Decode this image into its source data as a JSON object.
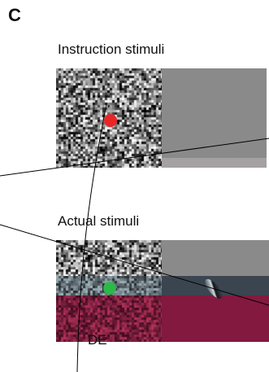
{
  "panel": {
    "letter": "C",
    "instruction_label": "Instruction stimuli",
    "actual_label": "Actual stimuli",
    "de_label": "DE"
  },
  "colors": {
    "instruction_fixation": "#e8262a",
    "actual_fixation": "#2db84a",
    "gray_field": "#8a8a8a",
    "dark_band": "#3a454f",
    "crimson_field": "#83193f"
  }
}
